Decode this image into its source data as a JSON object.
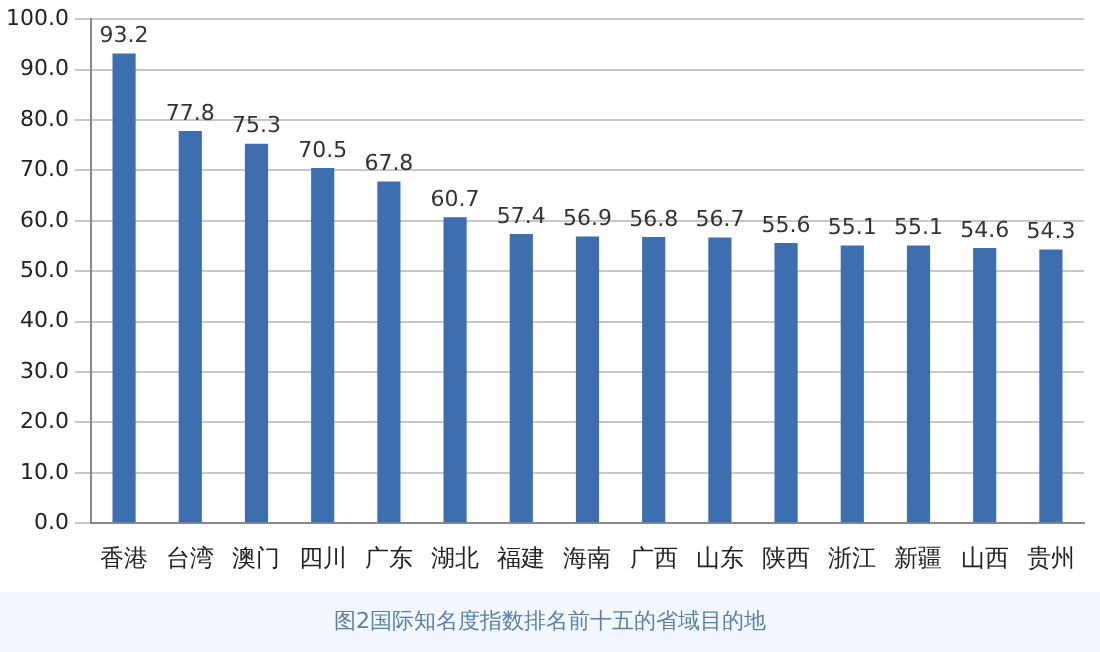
{
  "chart_data": {
    "type": "bar",
    "categories": [
      "香港",
      "台湾",
      "澳门",
      "四川",
      "广东",
      "湖北",
      "福建",
      "海南",
      "广西",
      "山东",
      "陕西",
      "浙江",
      "新疆",
      "山西",
      "贵州"
    ],
    "values": [
      93.2,
      77.8,
      75.3,
      70.5,
      67.8,
      60.7,
      57.4,
      56.9,
      56.8,
      56.7,
      55.6,
      55.1,
      55.1,
      54.6,
      54.3
    ],
    "color": "#3d6fb0",
    "data_labels": true,
    "grid": "y",
    "legend": false,
    "ylim": [
      0,
      100
    ],
    "yticks": [
      {
        "value": 0,
        "label": "0.0"
      },
      {
        "value": 10,
        "label": "10.0"
      },
      {
        "value": 20,
        "label": "20.0"
      },
      {
        "value": 30,
        "label": "30.0"
      },
      {
        "value": 40,
        "label": "40.0"
      },
      {
        "value": 50,
        "label": "50.0"
      },
      {
        "value": 60,
        "label": "60.0"
      },
      {
        "value": 70,
        "label": "70.0"
      },
      {
        "value": 80,
        "label": "80.0"
      },
      {
        "value": 90,
        "label": "90.0"
      },
      {
        "value": 100,
        "label": "100.0"
      }
    ],
    "annotations": [
      "图2国际知名度指数排名前十五的省域目的地"
    ]
  }
}
